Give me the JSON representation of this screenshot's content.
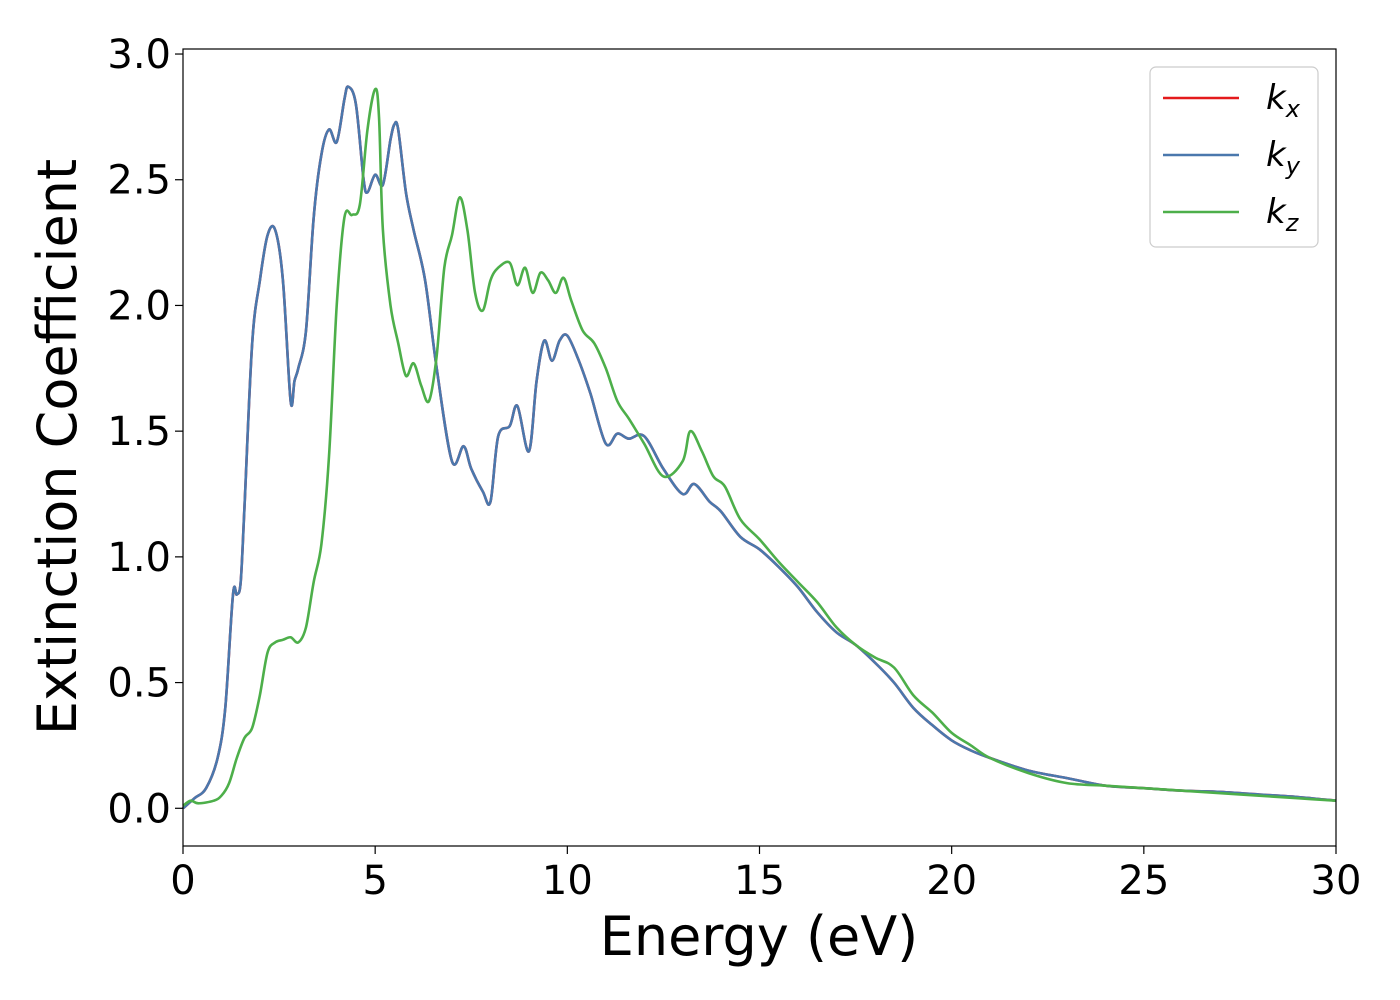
{
  "chart_data": {
    "type": "line",
    "title": "",
    "xlabel": "Energy (eV)",
    "ylabel": "Extinction Coefficient",
    "xlim": [
      0,
      30
    ],
    "ylim": [
      -0.15,
      3.02
    ],
    "xticks": [
      0,
      5,
      10,
      15,
      20,
      25,
      30
    ],
    "xtick_labels": [
      "0",
      "5",
      "10",
      "15",
      "20",
      "25",
      "30"
    ],
    "yticks": [
      0.0,
      0.5,
      1.0,
      1.5,
      2.0,
      2.5,
      3.0
    ],
    "ytick_labels": [
      "0.0",
      "0.5",
      "1.0",
      "1.5",
      "2.0",
      "2.5",
      "3.0"
    ],
    "grid": false,
    "legend_position": "top-right",
    "series": [
      {
        "name": "k",
        "subscript": "x",
        "color": "#e41a1c",
        "x": [
          0,
          0.3,
          0.6,
          0.9,
          1.1,
          1.3,
          1.4,
          1.5,
          1.6,
          1.8,
          2.0,
          2.2,
          2.4,
          2.6,
          2.8,
          2.9,
          3.0,
          3.2,
          3.4,
          3.6,
          3.8,
          4.0,
          4.2,
          4.3,
          4.5,
          4.7,
          4.8,
          5.0,
          5.2,
          5.4,
          5.5,
          5.6,
          5.8,
          6.0,
          6.3,
          6.6,
          7.0,
          7.3,
          7.5,
          7.8,
          8.0,
          8.2,
          8.5,
          8.7,
          9.0,
          9.2,
          9.4,
          9.6,
          9.8,
          10.0,
          10.3,
          10.6,
          11.0,
          11.3,
          11.6,
          12.0,
          12.5,
          13.0,
          13.3,
          13.7,
          14.0,
          14.5,
          15.0,
          15.5,
          16.0,
          16.5,
          17.0,
          17.5,
          18.0,
          18.5,
          19.0,
          19.5,
          20.0,
          20.5,
          21.0,
          22.0,
          23.0,
          24.0,
          25.0,
          26.0,
          27.0,
          28.0,
          29.0,
          30.0
        ],
        "values": [
          0.0,
          0.04,
          0.08,
          0.2,
          0.4,
          0.85,
          0.85,
          0.9,
          1.2,
          1.85,
          2.1,
          2.28,
          2.3,
          2.1,
          1.62,
          1.7,
          1.75,
          1.9,
          2.35,
          2.6,
          2.7,
          2.65,
          2.82,
          2.87,
          2.8,
          2.5,
          2.45,
          2.52,
          2.48,
          2.66,
          2.72,
          2.7,
          2.45,
          2.3,
          2.1,
          1.75,
          1.38,
          1.44,
          1.35,
          1.26,
          1.22,
          1.48,
          1.52,
          1.6,
          1.42,
          1.7,
          1.86,
          1.78,
          1.86,
          1.88,
          1.78,
          1.65,
          1.45,
          1.49,
          1.47,
          1.48,
          1.35,
          1.25,
          1.29,
          1.22,
          1.18,
          1.08,
          1.03,
          0.96,
          0.88,
          0.78,
          0.7,
          0.65,
          0.58,
          0.5,
          0.4,
          0.33,
          0.27,
          0.23,
          0.2,
          0.15,
          0.12,
          0.09,
          0.08,
          0.07,
          0.065,
          0.055,
          0.045,
          0.03
        ]
      },
      {
        "name": "k",
        "subscript": "y",
        "color": "#4a78ad",
        "x": [
          0,
          0.3,
          0.6,
          0.9,
          1.1,
          1.3,
          1.4,
          1.5,
          1.6,
          1.8,
          2.0,
          2.2,
          2.4,
          2.6,
          2.8,
          2.9,
          3.0,
          3.2,
          3.4,
          3.6,
          3.8,
          4.0,
          4.2,
          4.3,
          4.5,
          4.7,
          4.8,
          5.0,
          5.2,
          5.4,
          5.5,
          5.6,
          5.8,
          6.0,
          6.3,
          6.6,
          7.0,
          7.3,
          7.5,
          7.8,
          8.0,
          8.2,
          8.5,
          8.7,
          9.0,
          9.2,
          9.4,
          9.6,
          9.8,
          10.0,
          10.3,
          10.6,
          11.0,
          11.3,
          11.6,
          12.0,
          12.5,
          13.0,
          13.3,
          13.7,
          14.0,
          14.5,
          15.0,
          15.5,
          16.0,
          16.5,
          17.0,
          17.5,
          18.0,
          18.5,
          19.0,
          19.5,
          20.0,
          20.5,
          21.0,
          22.0,
          23.0,
          24.0,
          25.0,
          26.0,
          27.0,
          28.0,
          29.0,
          30.0
        ],
        "values": [
          0.0,
          0.04,
          0.08,
          0.2,
          0.4,
          0.85,
          0.85,
          0.9,
          1.2,
          1.85,
          2.1,
          2.28,
          2.3,
          2.1,
          1.62,
          1.7,
          1.75,
          1.9,
          2.35,
          2.6,
          2.7,
          2.65,
          2.82,
          2.87,
          2.8,
          2.5,
          2.45,
          2.52,
          2.48,
          2.66,
          2.72,
          2.7,
          2.45,
          2.3,
          2.1,
          1.75,
          1.38,
          1.44,
          1.35,
          1.26,
          1.22,
          1.48,
          1.52,
          1.6,
          1.42,
          1.7,
          1.86,
          1.78,
          1.86,
          1.88,
          1.78,
          1.65,
          1.45,
          1.49,
          1.47,
          1.48,
          1.35,
          1.25,
          1.29,
          1.22,
          1.18,
          1.08,
          1.03,
          0.96,
          0.88,
          0.78,
          0.7,
          0.65,
          0.58,
          0.5,
          0.4,
          0.33,
          0.27,
          0.23,
          0.2,
          0.15,
          0.12,
          0.09,
          0.08,
          0.07,
          0.065,
          0.055,
          0.045,
          0.03
        ]
      },
      {
        "name": "k",
        "subscript": "z",
        "color": "#4daf4a",
        "x": [
          0,
          0.2,
          0.4,
          0.8,
          1.0,
          1.2,
          1.4,
          1.6,
          1.8,
          2.0,
          2.2,
          2.4,
          2.6,
          2.8,
          3.0,
          3.2,
          3.4,
          3.6,
          3.8,
          4.0,
          4.2,
          4.4,
          4.6,
          4.8,
          5.0,
          5.1,
          5.2,
          5.4,
          5.6,
          5.8,
          6.0,
          6.2,
          6.4,
          6.6,
          6.8,
          7.0,
          7.2,
          7.4,
          7.6,
          7.8,
          8.0,
          8.2,
          8.5,
          8.7,
          8.9,
          9.1,
          9.3,
          9.5,
          9.7,
          9.9,
          10.1,
          10.4,
          10.7,
          11.0,
          11.3,
          11.6,
          12.0,
          12.5,
          13.0,
          13.2,
          13.5,
          13.8,
          14.1,
          14.5,
          15.0,
          15.5,
          16.0,
          16.5,
          17.0,
          17.5,
          18.0,
          18.5,
          19.0,
          19.5,
          20.0,
          20.5,
          21.0,
          22.0,
          23.0,
          24.0,
          25.0,
          26.0,
          27.0,
          28.0,
          29.0,
          30.0
        ],
        "values": [
          0.01,
          0.03,
          0.02,
          0.03,
          0.05,
          0.1,
          0.2,
          0.28,
          0.32,
          0.45,
          0.62,
          0.66,
          0.67,
          0.68,
          0.66,
          0.72,
          0.9,
          1.05,
          1.4,
          2.0,
          2.35,
          2.36,
          2.4,
          2.7,
          2.86,
          2.75,
          2.3,
          2.0,
          1.85,
          1.72,
          1.77,
          1.68,
          1.62,
          1.8,
          2.15,
          2.28,
          2.43,
          2.3,
          2.05,
          1.98,
          2.1,
          2.15,
          2.17,
          2.08,
          2.15,
          2.05,
          2.13,
          2.1,
          2.05,
          2.11,
          2.02,
          1.9,
          1.85,
          1.75,
          1.62,
          1.55,
          1.45,
          1.32,
          1.38,
          1.5,
          1.42,
          1.32,
          1.28,
          1.15,
          1.07,
          0.98,
          0.9,
          0.82,
          0.72,
          0.65,
          0.6,
          0.56,
          0.45,
          0.38,
          0.3,
          0.25,
          0.2,
          0.14,
          0.1,
          0.09,
          0.08,
          0.07,
          0.06,
          0.05,
          0.04,
          0.03
        ]
      }
    ]
  }
}
